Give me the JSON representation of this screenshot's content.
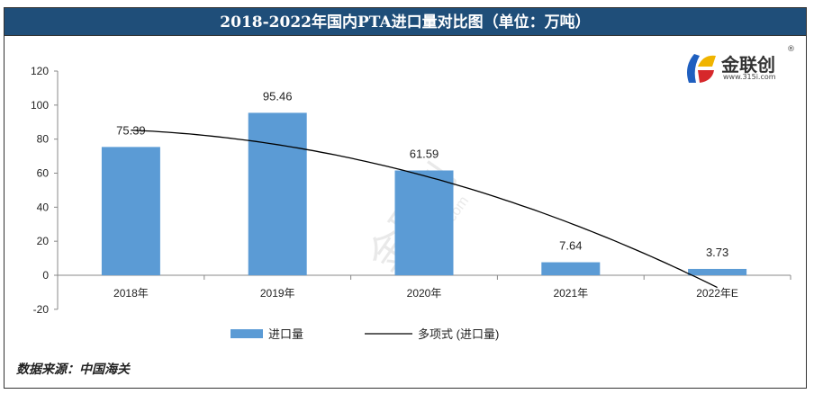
{
  "title": "2018-2022年国内PTA进口量对比图（单位：万吨）",
  "source": "数据来源：中国海关",
  "logo": {
    "name": "金联创",
    "url": "www.315i.com",
    "reg": "®"
  },
  "watermark": {
    "name": "金联创",
    "url": "www.315i.com"
  },
  "colors": {
    "bar": "#5b9bd5",
    "trend": "#000000",
    "title_bg": "#1f4e79"
  },
  "chart_data": {
    "type": "bar",
    "title": "2018-2022年国内PTA进口量对比图（单位：万吨）",
    "categories": [
      "2018年",
      "2019年",
      "2020年",
      "2021年",
      "2022年E"
    ],
    "series": [
      {
        "name": "进口量",
        "type": "bar",
        "values": [
          75.39,
          95.46,
          61.59,
          7.64,
          3.73
        ],
        "labels": [
          "75.39",
          "95.46",
          "61.59",
          "7.64",
          "3.73"
        ]
      },
      {
        "name": "多项式 (进口量)",
        "type": "trendline",
        "order": 2
      }
    ],
    "ylim": [
      -20,
      120
    ],
    "yticks": [
      -20,
      0,
      20,
      40,
      60,
      80,
      100,
      120
    ],
    "ytick_labels": [
      "-20",
      "0",
      "20",
      "40",
      "60",
      "80",
      "100",
      "120"
    ],
    "legend": "bottom",
    "grid": false
  }
}
